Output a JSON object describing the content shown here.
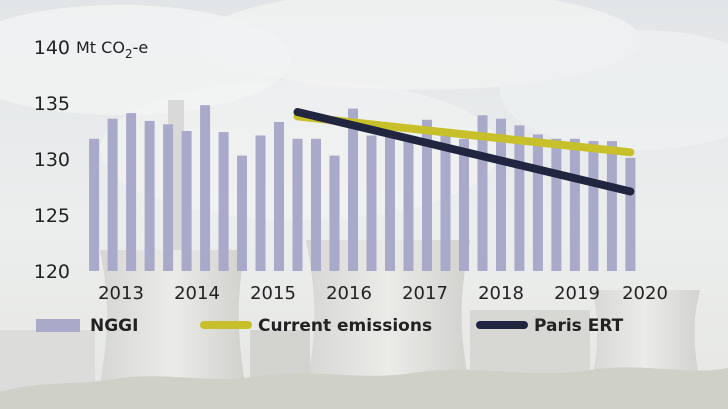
{
  "chart_data": {
    "type": "bar",
    "title": "",
    "xlabel": "",
    "ylabel": "",
    "unit": {
      "prefix": "Mt CO",
      "sub": "2",
      "suffix": "-e"
    },
    "ylim": [
      120,
      140
    ],
    "yticks": [
      120,
      125,
      130,
      135,
      140
    ],
    "xlim": [
      2012.6,
      2020.4
    ],
    "x_tick_labels": [
      "2013",
      "2014",
      "2015",
      "2016",
      "2017",
      "2018",
      "2019",
      "2020"
    ],
    "bars": {
      "name": "NGGI",
      "x": [
        2012.75,
        2013.0,
        2013.25,
        2013.5,
        2013.75,
        2014.0,
        2014.25,
        2014.5,
        2014.75,
        2015.0,
        2015.25,
        2015.5,
        2015.75,
        2016.0,
        2016.25,
        2016.5,
        2016.75,
        2017.0,
        2017.25,
        2017.5,
        2017.75,
        2018.0,
        2018.25,
        2018.5,
        2018.75,
        2019.0,
        2019.25,
        2019.5,
        2019.75,
        2020.0
      ],
      "values": [
        131.8,
        133.6,
        134.1,
        133.4,
        133.1,
        132.5,
        134.8,
        132.4,
        130.3,
        132.1,
        133.3,
        131.8,
        131.8,
        130.3,
        134.5,
        132.1,
        132.0,
        131.8,
        133.5,
        132.4,
        131.8,
        133.9,
        133.6,
        133.0,
        132.2,
        131.8,
        131.8,
        131.6,
        131.6,
        130.1
      ]
    },
    "lines": [
      {
        "name": "Current emissions",
        "color": "#c8c02a",
        "x": [
          2015.5,
          2020.0
        ],
        "values": [
          133.8,
          130.6
        ]
      },
      {
        "name": "Paris ERT",
        "color": "#22253f",
        "x": [
          2015.5,
          2020.0
        ],
        "values": [
          134.2,
          127.1
        ]
      }
    ],
    "bar_color": "#a9a9c9",
    "legend": {
      "placement": "bottom",
      "items": [
        {
          "label": "NGGI",
          "kind": "bar",
          "color": "#a9a9c9"
        },
        {
          "label": "Current emissions",
          "kind": "line",
          "color": "#c8c02a"
        },
        {
          "label": "Paris ERT",
          "kind": "line",
          "color": "#22253f"
        }
      ]
    },
    "grid": false
  }
}
